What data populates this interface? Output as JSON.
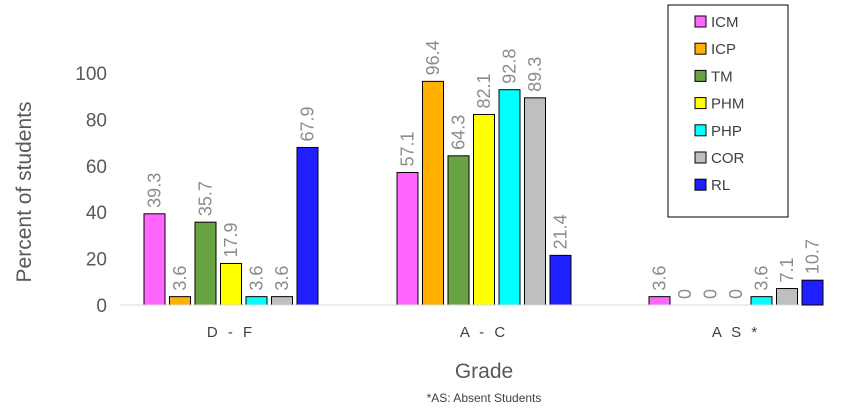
{
  "chart_data": {
    "type": "bar",
    "categories": [
      "D - F",
      "A - C",
      "A S *"
    ],
    "series": [
      {
        "name": "ICM",
        "color": "#ff66ff",
        "values": [
          39.3,
          57.1,
          3.6
        ]
      },
      {
        "name": "ICP",
        "color": "#ffb000",
        "values": [
          3.6,
          96.4,
          0
        ]
      },
      {
        "name": "TM",
        "color": "#6aa341",
        "values": [
          35.7,
          64.3,
          0
        ]
      },
      {
        "name": "PHM",
        "color": "#ffff00",
        "values": [
          17.9,
          82.1,
          0
        ]
      },
      {
        "name": "PHP",
        "color": "#00ffff",
        "values": [
          3.6,
          92.8,
          3.6
        ]
      },
      {
        "name": "COR",
        "color": "#bfbfbf",
        "values": [
          3.6,
          89.3,
          7.1
        ]
      },
      {
        "name": "RL",
        "color": "#1f1fff",
        "values": [
          67.9,
          21.4,
          10.7
        ]
      }
    ],
    "xlabel": "Grade",
    "ylabel": "Percent of students",
    "ylim": [
      0,
      100
    ],
    "yticks": [
      0,
      20,
      40,
      60,
      80,
      100
    ],
    "grid": false,
    "legend": "top-right",
    "footnote": "*AS: Absent Students"
  }
}
